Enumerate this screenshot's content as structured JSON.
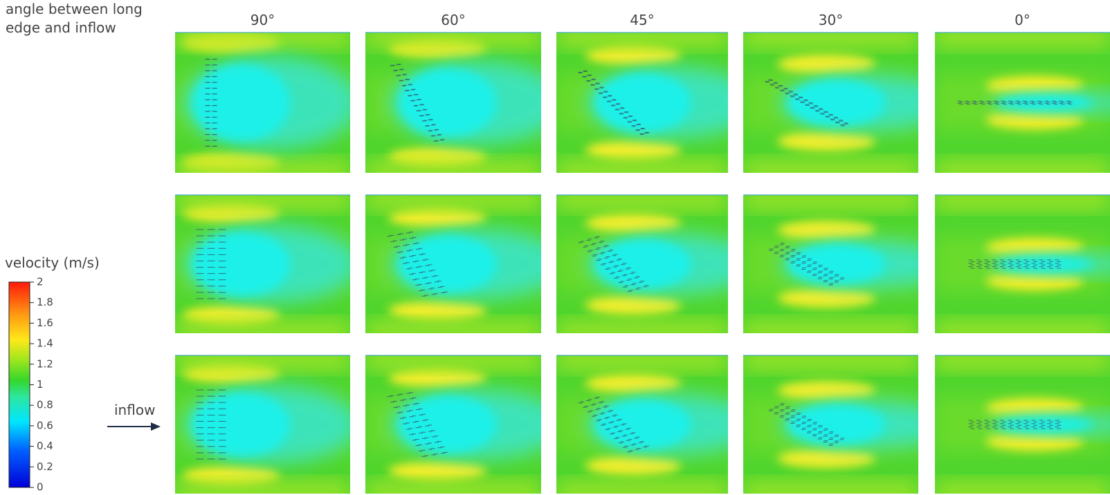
{
  "header": {
    "label": "angle between long edge and inflow"
  },
  "columns": [
    "90°",
    "60°",
    "45°",
    "30°",
    "0°"
  ],
  "legend": {
    "title": "velocity (m/s)",
    "ticks": [
      0,
      0.2,
      0.4,
      0.6,
      0.8,
      1,
      1.2,
      1.4,
      1.6,
      1.8,
      2
    ]
  },
  "inflow": "inflow"
}
